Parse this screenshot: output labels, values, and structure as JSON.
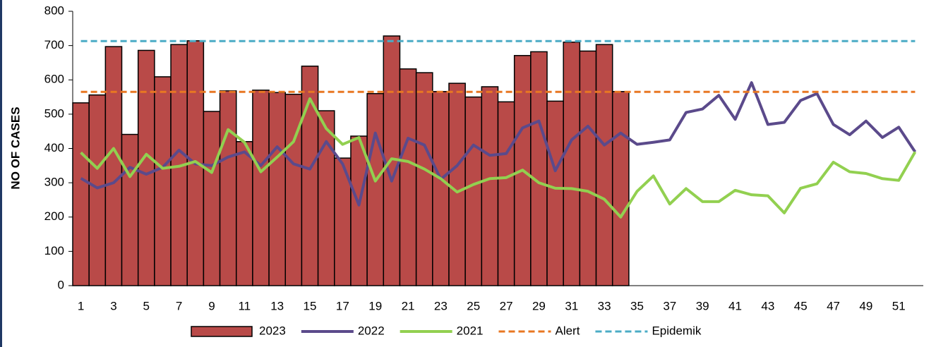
{
  "chart_data": {
    "type": "bar",
    "y_label": "NO OF CASES",
    "categories": [
      "1",
      null,
      "3",
      null,
      "5",
      null,
      "7",
      null,
      "9",
      null,
      "11",
      null,
      "13",
      null,
      "15",
      null,
      "17",
      null,
      "19",
      null,
      "21",
      null,
      "23",
      null,
      "25",
      null,
      "27",
      null,
      "29",
      null,
      "31",
      null,
      "33",
      null,
      "35",
      null,
      "37",
      null,
      "39",
      null,
      "41",
      null,
      "43",
      null,
      "45",
      null,
      "47",
      null,
      "49",
      null,
      "51",
      null
    ],
    "ylim": [
      0,
      800
    ],
    "yticks": [
      0,
      100,
      200,
      300,
      400,
      500,
      600,
      700,
      800
    ],
    "series": [
      {
        "name": "2023",
        "kind": "bar",
        "color": "#b94a48",
        "values": [
          533,
          556,
          697,
          441,
          686,
          609,
          703,
          714,
          508,
          568,
          420,
          570,
          563,
          558,
          640,
          510,
          372,
          436,
          560,
          728,
          632,
          621,
          566,
          590,
          550,
          580,
          536,
          671,
          682,
          538,
          710,
          684,
          703,
          566,
          null,
          null,
          null,
          null,
          null,
          null,
          null,
          null,
          null,
          null,
          null,
          null,
          null,
          null,
          null,
          null,
          null,
          null
        ]
      },
      {
        "name": "2022",
        "kind": "line",
        "color": "#5b4a8b",
        "values": [
          313,
          285,
          300,
          345,
          325,
          345,
          395,
          355,
          350,
          375,
          390,
          350,
          405,
          355,
          340,
          420,
          355,
          235,
          445,
          305,
          430,
          410,
          310,
          350,
          410,
          380,
          385,
          460,
          480,
          335,
          425,
          465,
          410,
          445,
          412,
          418,
          425,
          505,
          515,
          555,
          485,
          592,
          470,
          476,
          540,
          560,
          470,
          440,
          480,
          432,
          462,
          390
        ]
      },
      {
        "name": "2021",
        "kind": "line",
        "color": "#92d050",
        "values": [
          388,
          342,
          400,
          318,
          383,
          342,
          348,
          362,
          330,
          455,
          418,
          332,
          375,
          420,
          545,
          458,
          412,
          432,
          305,
          370,
          362,
          340,
          312,
          273,
          295,
          312,
          315,
          337,
          300,
          284,
          283,
          275,
          252,
          200,
          275,
          320,
          238,
          283,
          245,
          245,
          278,
          265,
          262,
          212,
          284,
          297,
          360,
          332,
          327,
          312,
          307,
          390
        ]
      },
      {
        "name": "Alert",
        "kind": "line",
        "dashed": true,
        "color": "#e87722",
        "values": [
          565,
          565,
          565,
          565,
          565,
          565,
          565,
          565,
          565,
          565,
          565,
          565,
          565,
          565,
          565,
          565,
          565,
          565,
          565,
          565,
          565,
          565,
          565,
          565,
          565,
          565,
          565,
          565,
          565,
          565,
          565,
          565,
          565,
          565,
          565,
          565,
          565,
          565,
          565,
          565,
          565,
          565,
          565,
          565,
          565,
          565,
          565,
          565,
          565,
          565,
          565,
          565
        ]
      },
      {
        "name": "Epidemik",
        "kind": "line",
        "dashed": true,
        "color": "#4bacc6",
        "values": [
          713,
          713,
          713,
          713,
          713,
          713,
          713,
          713,
          713,
          713,
          713,
          713,
          713,
          713,
          713,
          713,
          713,
          713,
          713,
          713,
          713,
          713,
          713,
          713,
          713,
          713,
          713,
          713,
          713,
          713,
          713,
          713,
          713,
          713,
          713,
          713,
          713,
          713,
          713,
          713,
          713,
          713,
          713,
          713,
          713,
          713,
          713,
          713,
          713,
          713,
          713,
          713
        ]
      }
    ]
  }
}
